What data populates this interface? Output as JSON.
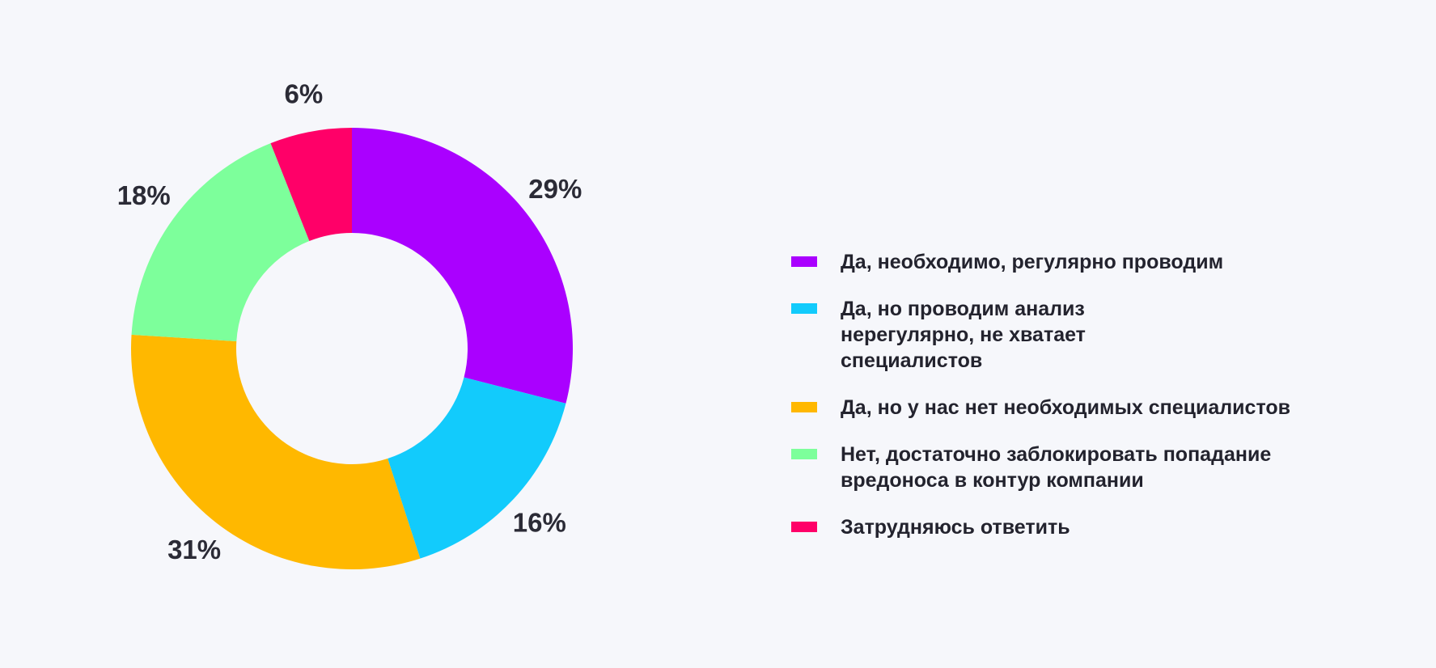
{
  "chart_data": {
    "type": "pie",
    "variant": "donut",
    "title": "",
    "start_angle": "top",
    "direction": "clockwise",
    "legend_position": "right",
    "series": [
      {
        "name": "Да, необходимо, регулярно проводим",
        "value": 29,
        "label": "29%",
        "color": "#aa00ff"
      },
      {
        "name": "Да, но проводим анализ нерегулярно, не хватает специалистов",
        "value": 16,
        "label": "16%",
        "color": "#12cbfc"
      },
      {
        "name": "Да, но у нас нет необходимых специалистов",
        "value": 31,
        "label": "31%",
        "color": "#ffb800"
      },
      {
        "name": "Нет, достаточно заблокировать попадание вредоноса в контур компании",
        "value": 18,
        "label": "18%",
        "color": "#7dff9b"
      },
      {
        "name": "Затрудняюсь ответить",
        "value": 6,
        "label": "6%",
        "color": "#ff0068"
      }
    ]
  }
}
